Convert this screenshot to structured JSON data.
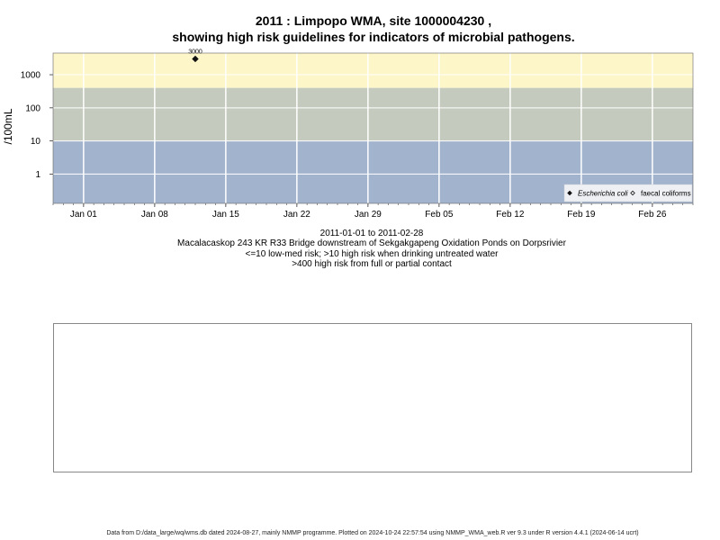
{
  "title_line1": "2011 : Limpopo WMA, site 1000004230 ,",
  "title_line2": "showing high risk guidelines for indicators of microbial pathogens.",
  "captions": [
    "2011-01-01 to 2011-02-28",
    "Macalacaskop 243 KR R33 Bridge downstream of Sekgakgapeng Oxidation Ponds on Dorpsrivier",
    "<=10 low-med risk; >10 high risk when drinking untreated water",
    ">400 high risk from full or partial contact"
  ],
  "footer": "Data from D:/data_large/wq/wms.db dated 2024-08-27, mainly NMMP programme. Plotted on 2024-10-24 22:57:54 using NMMP_WMA_web.R ver 9.3 under R version 4.4.1 (2024-06-14 ucrt)",
  "chart_data": {
    "type": "scatter",
    "ylabel": "/100mL",
    "y_scale": "log",
    "ylim": [
      0.13,
      4500
    ],
    "y_ticks": [
      {
        "value": 1,
        "label": "1"
      },
      {
        "value": 10,
        "label": "10"
      },
      {
        "value": 100,
        "label": "100"
      },
      {
        "value": 1000,
        "label": "1000"
      }
    ],
    "x_range": [
      "2010-12-29",
      "2011-03-02"
    ],
    "x_ticks": [
      {
        "date": "2011-01-01",
        "label": "Jan 01"
      },
      {
        "date": "2011-01-08",
        "label": "Jan 08"
      },
      {
        "date": "2011-01-15",
        "label": "Jan 15"
      },
      {
        "date": "2011-01-22",
        "label": "Jan 22"
      },
      {
        "date": "2011-01-29",
        "label": "Jan 29"
      },
      {
        "date": "2011-02-05",
        "label": "Feb 05"
      },
      {
        "date": "2011-02-12",
        "label": "Feb 12"
      },
      {
        "date": "2011-02-19",
        "label": "Feb 19"
      },
      {
        "date": "2011-02-26",
        "label": "Feb 26"
      }
    ],
    "bands": [
      {
        "from": 400,
        "to": 4500,
        "color": "#fdf6c8"
      },
      {
        "from": 10,
        "to": 400,
        "color": "#c4cbbe"
      },
      {
        "from": 0.13,
        "to": 10,
        "color": "#a2b3cd"
      }
    ],
    "grid": true,
    "series": [
      {
        "name": "Escherichia coli",
        "marker": "diamond-filled",
        "points": [
          {
            "date": "2011-01-12",
            "value": 3000,
            "label": "3000"
          }
        ]
      },
      {
        "name": "faecal coliforms",
        "marker": "diamond-open",
        "points": []
      }
    ],
    "legend_position": "bottom-right"
  }
}
